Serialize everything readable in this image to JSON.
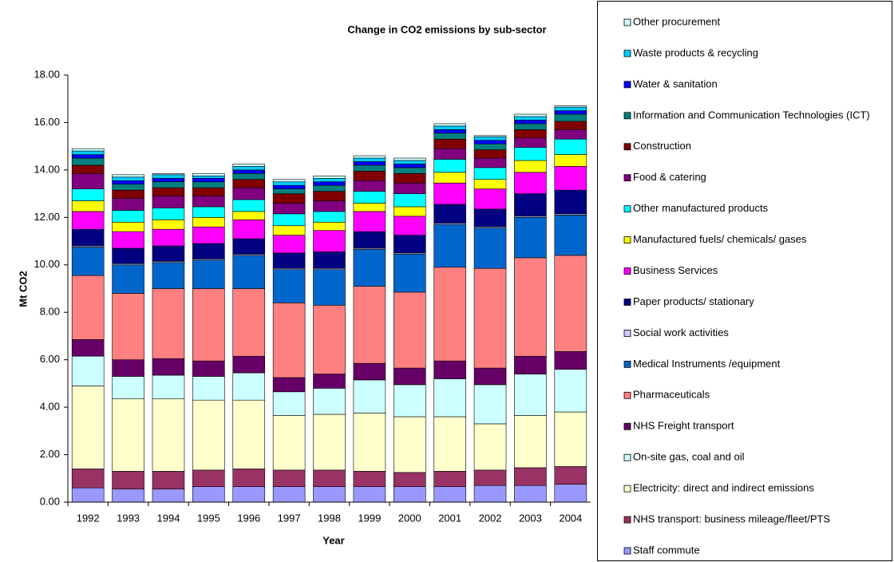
{
  "chart_data": {
    "type": "stacked-bar",
    "title": "Change in CO2 emissions by sub-sector",
    "x_label": "Year",
    "y_label": "Mt CO2",
    "categories": [
      "1992",
      "1993",
      "1994",
      "1995",
      "1996",
      "1997",
      "1998",
      "1999",
      "2000",
      "2001",
      "2002",
      "2003",
      "2004"
    ],
    "ylim": [
      0,
      18
    ],
    "yticks": [
      {
        "value": 0,
        "label": "0.00"
      },
      {
        "value": 2,
        "label": "2.00"
      },
      {
        "value": 4,
        "label": "4.00"
      },
      {
        "value": 6,
        "label": "6.00"
      },
      {
        "value": 8,
        "label": "8.00"
      },
      {
        "value": 10,
        "label": "10.00"
      },
      {
        "value": 12,
        "label": "12.00"
      },
      {
        "value": 14,
        "label": "14.00"
      },
      {
        "value": 16,
        "label": "16.00"
      },
      {
        "value": 18,
        "label": "18.00"
      }
    ],
    "grid": false,
    "legend": "right",
    "series": [
      {
        "name": "Staff commute",
        "color": "#9999ff",
        "values": [
          0.6,
          0.55,
          0.55,
          0.65,
          0.65,
          0.65,
          0.65,
          0.65,
          0.65,
          0.65,
          0.7,
          0.7,
          0.75
        ]
      },
      {
        "name": "NHS transport: business mileage/fleet/PTS",
        "color": "#993366",
        "values": [
          0.8,
          0.75,
          0.75,
          0.7,
          0.75,
          0.7,
          0.7,
          0.65,
          0.6,
          0.65,
          0.65,
          0.75,
          0.75
        ]
      },
      {
        "name": "Electricity: direct and indirect emissions",
        "color": "#ffffcc",
        "values": [
          3.5,
          3.05,
          3.05,
          2.95,
          2.9,
          2.3,
          2.35,
          2.45,
          2.35,
          2.3,
          1.95,
          2.2,
          2.3
        ]
      },
      {
        "name": "On-site gas, coal and oil",
        "color": "#ccffff",
        "values": [
          1.25,
          0.95,
          1.0,
          1.0,
          1.15,
          1.0,
          1.1,
          1.4,
          1.35,
          1.6,
          1.65,
          1.75,
          1.8
        ]
      },
      {
        "name": "NHS Freight transport",
        "color": "#660066",
        "values": [
          0.7,
          0.7,
          0.7,
          0.65,
          0.7,
          0.6,
          0.6,
          0.7,
          0.7,
          0.75,
          0.7,
          0.75,
          0.75
        ]
      },
      {
        "name": "Pharmaceuticals",
        "color": "#ff8080",
        "values": [
          2.7,
          2.8,
          2.95,
          3.05,
          2.85,
          3.15,
          2.9,
          3.25,
          3.2,
          3.95,
          4.2,
          4.15,
          4.05
        ]
      },
      {
        "name": "Medical Instruments /equipment",
        "color": "#0066cc",
        "values": [
          1.2,
          1.2,
          1.1,
          1.2,
          1.4,
          1.4,
          1.5,
          1.55,
          1.6,
          1.8,
          1.7,
          1.7,
          1.7
        ]
      },
      {
        "name": "Social work activities",
        "color": "#ccccff",
        "values": [
          0.05,
          0.05,
          0.05,
          0.05,
          0.05,
          0.05,
          0.05,
          0.05,
          0.05,
          0.05,
          0.05,
          0.05,
          0.05
        ]
      },
      {
        "name": "Paper products/ stationary",
        "color": "#000080",
        "values": [
          0.7,
          0.65,
          0.65,
          0.65,
          0.65,
          0.65,
          0.7,
          0.7,
          0.75,
          0.8,
          0.75,
          0.95,
          1.0
        ]
      },
      {
        "name": "Business Services",
        "color": "#ff00ff",
        "values": [
          0.75,
          0.7,
          0.7,
          0.7,
          0.8,
          0.75,
          0.9,
          0.85,
          0.8,
          0.9,
          0.85,
          0.9,
          1.0
        ]
      },
      {
        "name": "Manufactured fuels/ chemicals/ gases",
        "color": "#ffff00",
        "values": [
          0.45,
          0.4,
          0.4,
          0.4,
          0.35,
          0.4,
          0.35,
          0.35,
          0.4,
          0.45,
          0.4,
          0.5,
          0.5
        ]
      },
      {
        "name": "Other manufactured products",
        "color": "#00ffff",
        "values": [
          0.5,
          0.5,
          0.5,
          0.45,
          0.5,
          0.5,
          0.45,
          0.5,
          0.55,
          0.55,
          0.5,
          0.55,
          0.65
        ]
      },
      {
        "name": "Food & catering",
        "color": "#800080",
        "values": [
          0.65,
          0.5,
          0.5,
          0.45,
          0.5,
          0.45,
          0.45,
          0.45,
          0.45,
          0.45,
          0.4,
          0.4,
          0.4
        ]
      },
      {
        "name": "Construction",
        "color": "#800000",
        "values": [
          0.35,
          0.35,
          0.35,
          0.35,
          0.35,
          0.4,
          0.4,
          0.4,
          0.4,
          0.4,
          0.35,
          0.35,
          0.35
        ]
      },
      {
        "name": "Information and Communication Technologies (ICT)",
        "color": "#008080",
        "values": [
          0.3,
          0.25,
          0.25,
          0.25,
          0.25,
          0.2,
          0.25,
          0.25,
          0.25,
          0.25,
          0.25,
          0.25,
          0.3
        ]
      },
      {
        "name": "Water & sanitation",
        "color": "#0000ff",
        "values": [
          0.15,
          0.15,
          0.15,
          0.15,
          0.15,
          0.15,
          0.15,
          0.15,
          0.15,
          0.15,
          0.15,
          0.15,
          0.15
        ]
      },
      {
        "name": "Waste products & recycling",
        "color": "#00ccff",
        "values": [
          0.15,
          0.15,
          0.15,
          0.1,
          0.15,
          0.15,
          0.15,
          0.15,
          0.15,
          0.15,
          0.15,
          0.15,
          0.15
        ]
      },
      {
        "name": "Other procurement",
        "color": "#ccffff",
        "values": [
          0.1,
          0.1,
          0.05,
          0.1,
          0.1,
          0.1,
          0.1,
          0.1,
          0.1,
          0.1,
          0.05,
          0.1,
          0.05
        ]
      }
    ]
  }
}
